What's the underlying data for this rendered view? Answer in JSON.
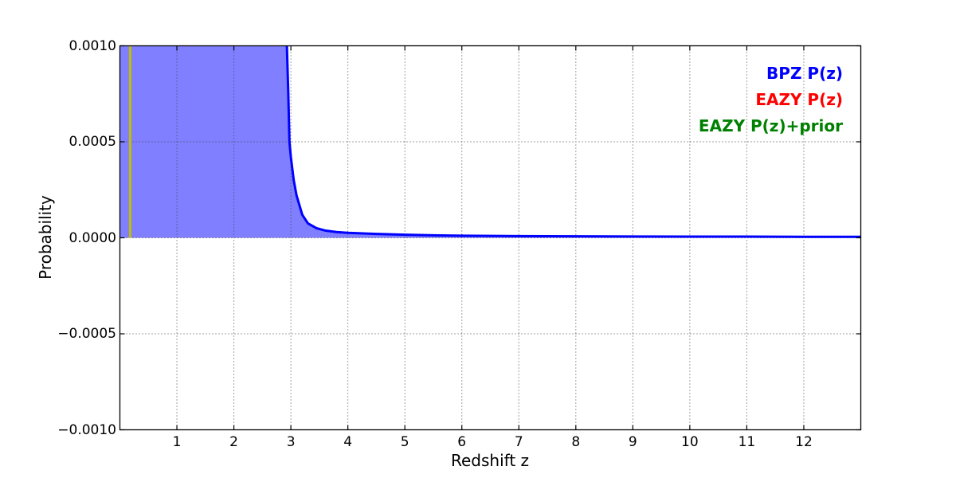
{
  "chart_data": {
    "type": "line",
    "title": "",
    "xlabel": "Redshift z",
    "ylabel": "Probability",
    "xlim": [
      0,
      13
    ],
    "ylim": [
      -0.001,
      0.001
    ],
    "grid": true,
    "grid_style": "dotted",
    "xticks": [
      {
        "value": 1,
        "label": "1"
      },
      {
        "value": 2,
        "label": "2"
      },
      {
        "value": 3,
        "label": "3"
      },
      {
        "value": 4,
        "label": "4"
      },
      {
        "value": 5,
        "label": "5"
      },
      {
        "value": 6,
        "label": "6"
      },
      {
        "value": 7,
        "label": "7"
      },
      {
        "value": 8,
        "label": "8"
      },
      {
        "value": 9,
        "label": "9"
      },
      {
        "value": 10,
        "label": "10"
      },
      {
        "value": 11,
        "label": "11"
      },
      {
        "value": 12,
        "label": "12"
      }
    ],
    "yticks": [
      {
        "value": 0.001,
        "label": "0.0010"
      },
      {
        "value": 0.0005,
        "label": "0.0005"
      },
      {
        "value": 0.0,
        "label": "0.0000"
      },
      {
        "value": -0.0005,
        "label": "−0.0005"
      },
      {
        "value": -0.001,
        "label": "−0.0010"
      }
    ],
    "legend_position": "upper right",
    "legend": [
      {
        "label": "BPZ P(z)",
        "color": "#0000ff"
      },
      {
        "label": "EAZY P(z)",
        "color": "#ff0000"
      },
      {
        "label": "EAZY P(z)+prior",
        "color": "#008000"
      }
    ],
    "series": [
      {
        "name": "BPZ P(z)",
        "color": "#0000ff",
        "fill_color": "#7f7fff",
        "linewidth": 3,
        "offscale_above_ylim_from_x": 0,
        "offscale_above_ylim_to_x": 2.93,
        "points": [
          [
            2.93,
            0.001
          ],
          [
            2.955,
            0.00075
          ],
          [
            2.975,
            0.0005
          ],
          [
            3.0,
            0.00042
          ],
          [
            3.05,
            0.0003
          ],
          [
            3.1,
            0.00022
          ],
          [
            3.2,
            0.00012
          ],
          [
            3.3,
            7.5e-05
          ],
          [
            3.45,
            5e-05
          ],
          [
            3.6,
            3.8e-05
          ],
          [
            3.8,
            3e-05
          ],
          [
            4.0,
            2.6e-05
          ],
          [
            4.5,
            2e-05
          ],
          [
            5.0,
            1.6e-05
          ],
          [
            5.5,
            1.3e-05
          ],
          [
            6.0,
            1.1e-05
          ],
          [
            7.0,
            9e-06
          ],
          [
            8.0,
            8e-06
          ],
          [
            9.0,
            7e-06
          ],
          [
            10.0,
            6e-06
          ],
          [
            11.0,
            6e-06
          ],
          [
            12.0,
            5e-06
          ],
          [
            13.0,
            5e-06
          ]
        ]
      }
    ],
    "vlines": [
      {
        "name": "spec-z-marker",
        "x": 0.18,
        "y_from": 0,
        "y_to": 0.001,
        "color": "#bfbf00",
        "linewidth": 3
      }
    ]
  }
}
